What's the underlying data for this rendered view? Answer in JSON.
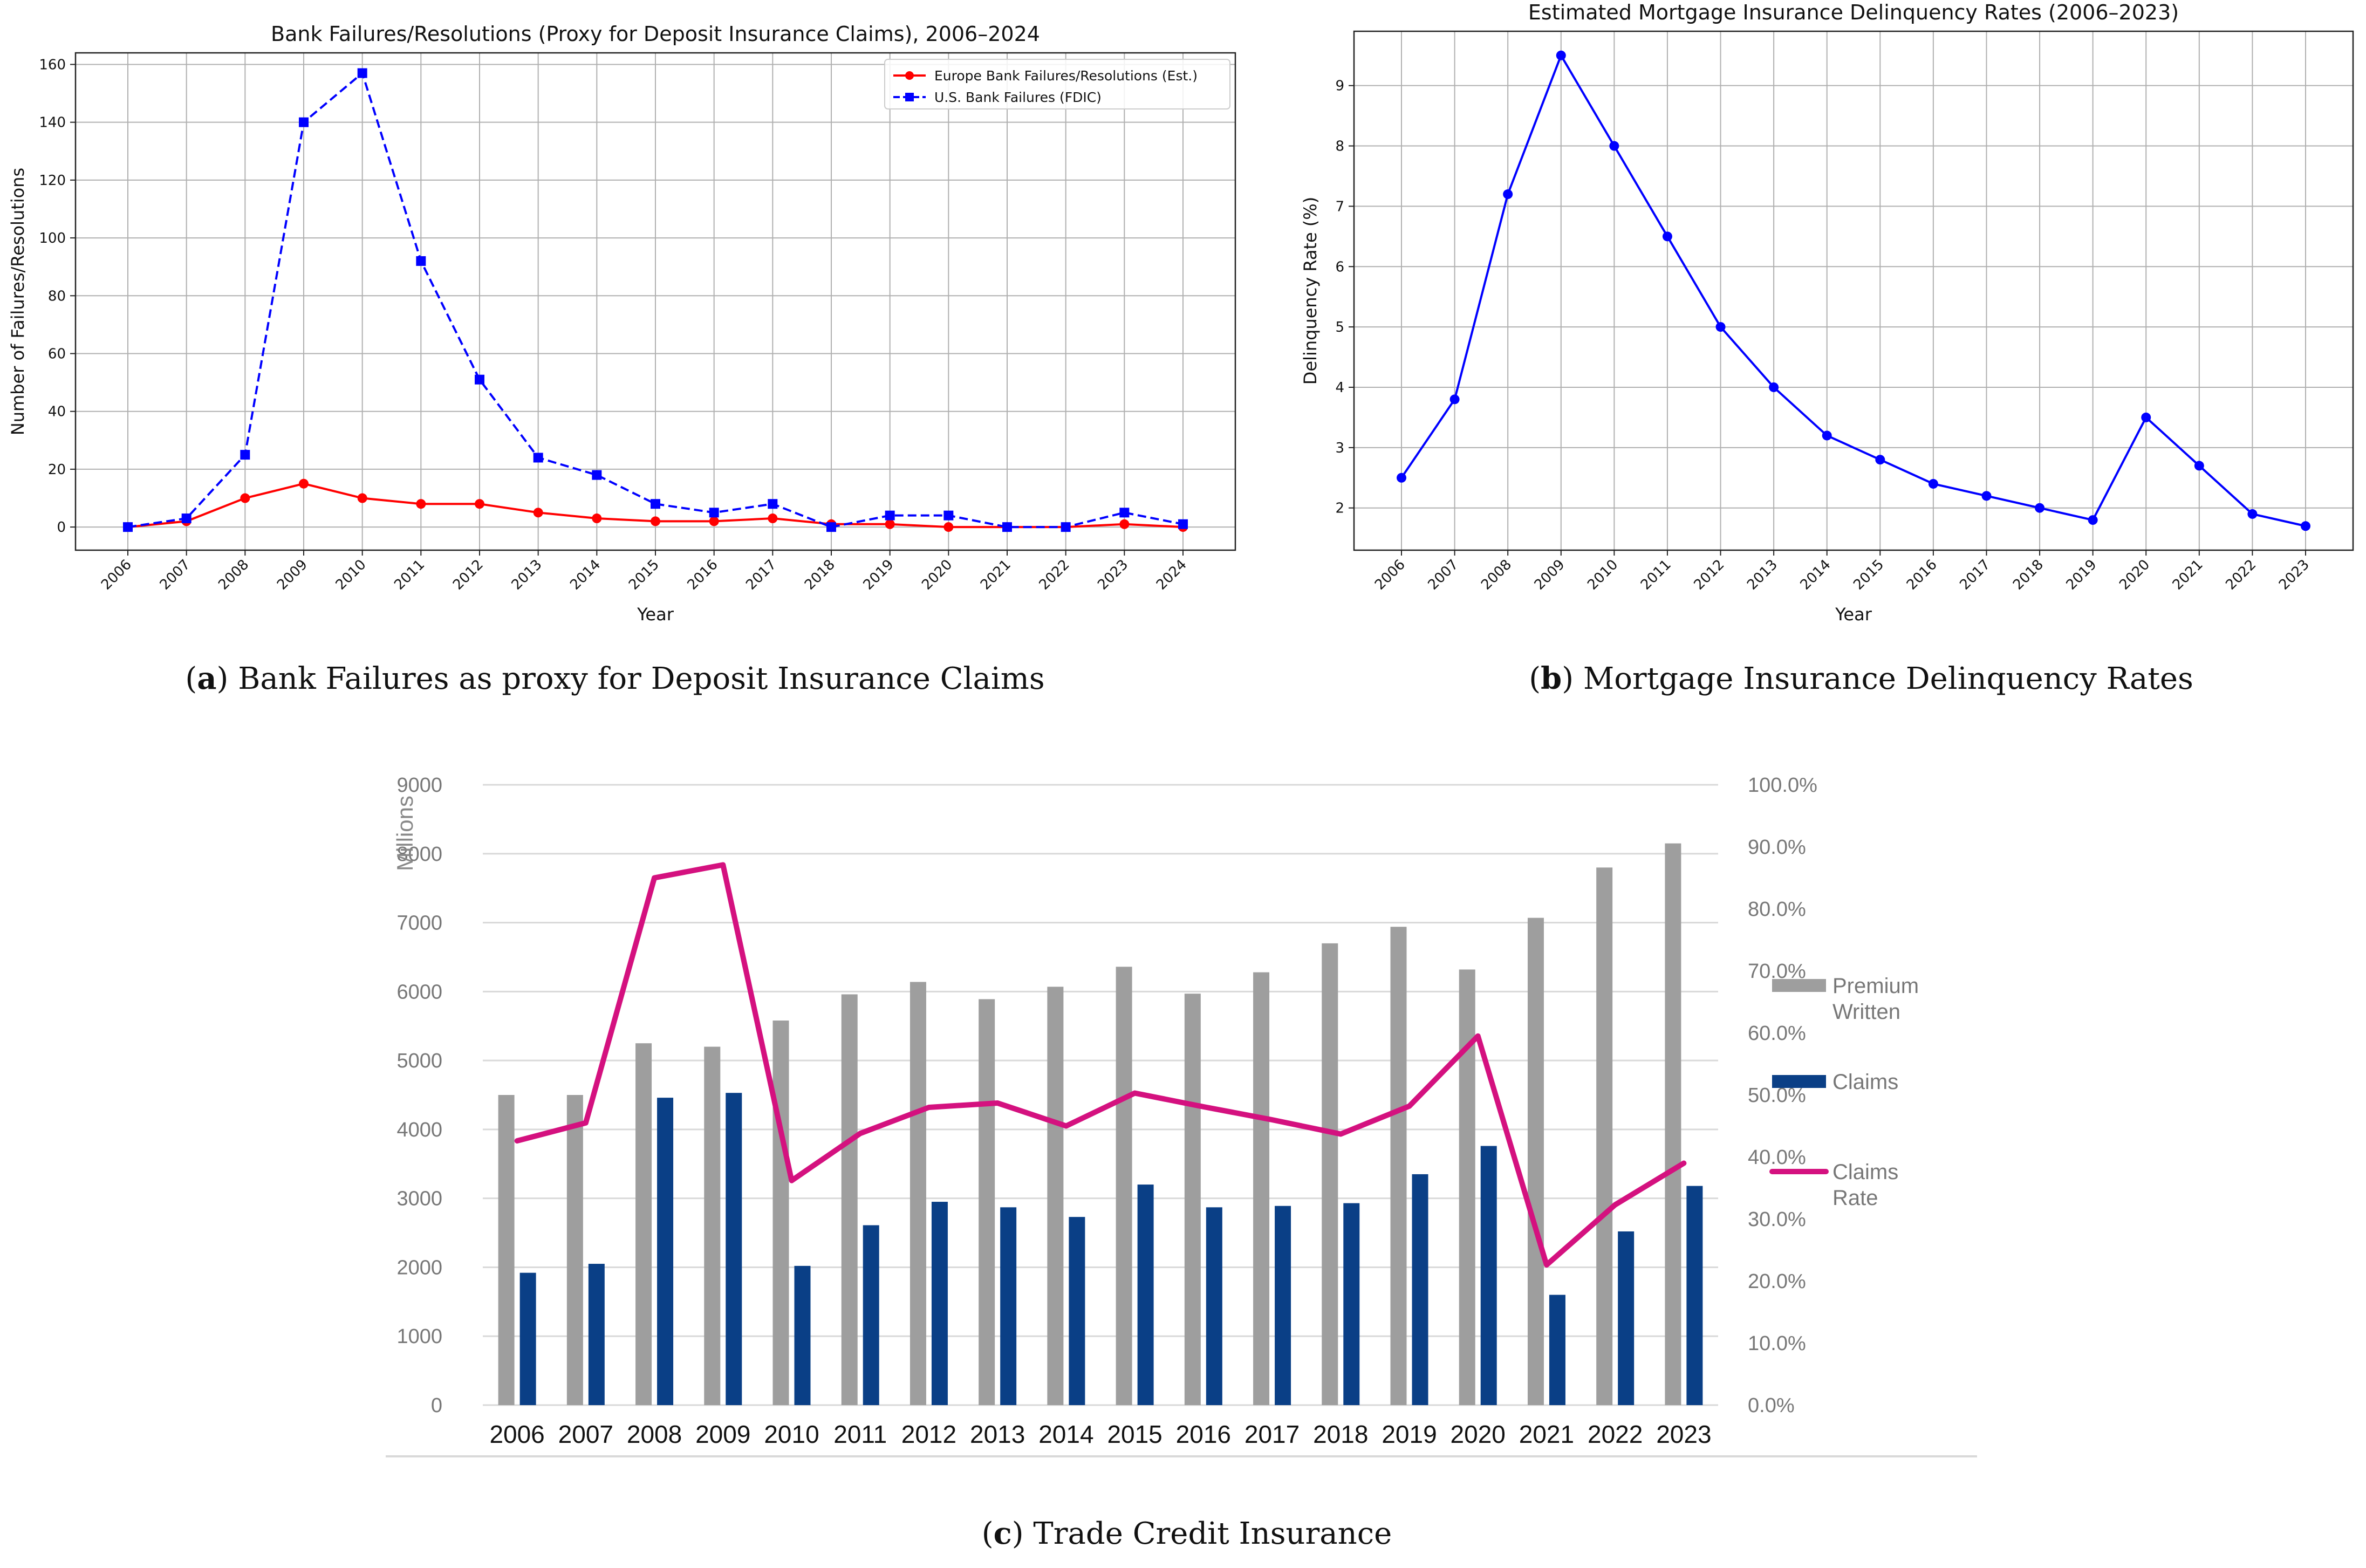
{
  "captions": {
    "a": {
      "tag": "a",
      "text": "Bank Failures as proxy for Deposit Insurance Claims"
    },
    "b": {
      "tag": "b",
      "text": "Mortgage Insurance Delinquency Rates"
    },
    "c": {
      "tag": "c",
      "text": "Trade Credit Insurance"
    }
  },
  "chart_data": [
    {
      "id": "a",
      "type": "line",
      "title": "Bank Failures/Resolutions (Proxy for Deposit Insurance Claims), 2006–2024",
      "xlabel": "Year",
      "ylabel": "Number of Failures/Resolutions",
      "ylim": [
        -8,
        164
      ],
      "yticks": [
        0,
        20,
        40,
        60,
        80,
        100,
        120,
        140,
        160
      ],
      "grid": true,
      "legend_position": "top-right",
      "x": [
        "2006",
        "2007",
        "2008",
        "2009",
        "2010",
        "2011",
        "2012",
        "2013",
        "2014",
        "2015",
        "2016",
        "2017",
        "2018",
        "2019",
        "2020",
        "2021",
        "2022",
        "2023",
        "2024"
      ],
      "series": [
        {
          "name": "Europe Bank Failures/Resolutions (Est.)",
          "color": "#ff0000",
          "style": "solid",
          "marker": "circle",
          "values": [
            0,
            2,
            10,
            15,
            10,
            8,
            8,
            5,
            3,
            2,
            2,
            3,
            1,
            1,
            0,
            0,
            0,
            1,
            0
          ]
        },
        {
          "name": "U.S. Bank Failures (FDIC)",
          "color": "#0000ff",
          "style": "dashed",
          "marker": "square",
          "values": [
            0,
            3,
            25,
            140,
            157,
            92,
            51,
            24,
            18,
            8,
            5,
            8,
            0,
            4,
            4,
            0,
            0,
            5,
            1
          ]
        }
      ]
    },
    {
      "id": "b",
      "type": "line",
      "title": "Estimated Mortgage Insurance Delinquency Rates (2006–2023)",
      "xlabel": "Year",
      "ylabel": "Delinquency Rate (%)",
      "ylim": [
        1.3,
        9.9
      ],
      "yticks": [
        2,
        3,
        4,
        5,
        6,
        7,
        8,
        9
      ],
      "grid": true,
      "x": [
        "2006",
        "2007",
        "2008",
        "2009",
        "2010",
        "2011",
        "2012",
        "2013",
        "2014",
        "2015",
        "2016",
        "2017",
        "2018",
        "2019",
        "2020",
        "2021",
        "2022",
        "2023"
      ],
      "series": [
        {
          "name": "Delinquency Rate",
          "color": "#0000ff",
          "style": "solid",
          "marker": "circle",
          "values": [
            2.5,
            3.8,
            7.2,
            9.5,
            8.0,
            6.5,
            5.0,
            4.0,
            3.2,
            2.8,
            2.4,
            2.2,
            2.0,
            1.8,
            3.5,
            2.7,
            1.9,
            1.7
          ]
        }
      ]
    },
    {
      "id": "c",
      "type": "bar",
      "title": "",
      "ylabel": "Millions",
      "ylim": [
        0,
        9000
      ],
      "yticks": [
        "0",
        "1000",
        "2000",
        "3000",
        "4000",
        "5000",
        "6000",
        "7000",
        "8000",
        "9000"
      ],
      "y2lim": [
        0,
        100
      ],
      "y2ticks": [
        "0.0%",
        "10.0%",
        "20.0%",
        "30.0%",
        "40.0%",
        "50.0%",
        "60.0%",
        "70.0%",
        "80.0%",
        "90.0%",
        "100.0%"
      ],
      "categories": [
        "2006",
        "2007",
        "2008",
        "2009",
        "2010",
        "2011",
        "2012",
        "2013",
        "2014",
        "2015",
        "2016",
        "2017",
        "2018",
        "2019",
        "2020",
        "2021",
        "2022",
        "2023"
      ],
      "legend_position": "right",
      "series": [
        {
          "name": "Premium Written",
          "legend_lines": [
            "Premium",
            "Written"
          ],
          "kind": "bar",
          "color": "#9e9e9e",
          "values": [
            4500,
            4500,
            5250,
            5200,
            5580,
            5960,
            6140,
            5890,
            6070,
            6360,
            5970,
            6280,
            6700,
            6940,
            6320,
            7070,
            7800,
            8150
          ]
        },
        {
          "name": "Claims",
          "legend_lines": [
            "Claims"
          ],
          "kind": "bar",
          "color": "#0a3f86",
          "values": [
            1920,
            2050,
            4460,
            4530,
            2020,
            2610,
            2950,
            2870,
            2730,
            3200,
            2870,
            2890,
            2930,
            3350,
            3760,
            1600,
            2520,
            3180
          ]
        },
        {
          "name": "Claims Rate",
          "legend_lines": [
            "Claims",
            "Rate"
          ],
          "kind": "line",
          "axis": "right",
          "color": "#d4117f",
          "values": [
            42.6,
            45.5,
            85.0,
            87.1,
            36.2,
            43.8,
            48.0,
            48.7,
            45.0,
            50.3,
            48.1,
            46.0,
            43.7,
            48.2,
            59.5,
            22.6,
            32.3,
            39.0
          ]
        }
      ]
    }
  ]
}
